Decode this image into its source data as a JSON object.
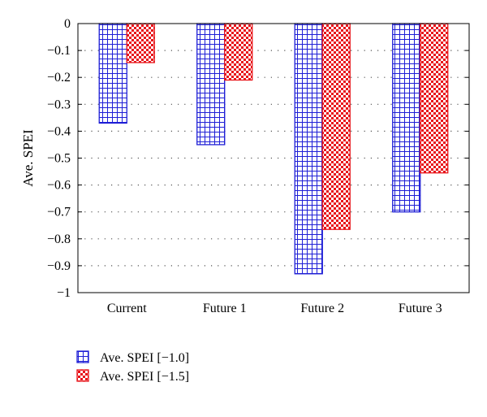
{
  "chart_data": {
    "type": "bar",
    "title": "",
    "xlabel": "",
    "ylabel": "Ave. SPEI",
    "categories": [
      "Current",
      "Future 1",
      "Future 2",
      "Future 3"
    ],
    "series": [
      {
        "name": "Ave. SPEI [−1.0]",
        "values": [
          -0.37,
          -0.45,
          -0.93,
          -0.7
        ],
        "color": "#1f1fd6",
        "pattern": "grid"
      },
      {
        "name": "Ave. SPEI [−1.5]",
        "values": [
          -0.145,
          -0.21,
          -0.765,
          -0.555
        ],
        "color": "#e8141a",
        "pattern": "checker"
      }
    ],
    "ylim": [
      -1,
      0
    ],
    "yticks": [
      0,
      -0.1,
      -0.2,
      -0.3,
      -0.4,
      -0.5,
      -0.6,
      -0.7,
      -0.8,
      -0.9,
      -1
    ],
    "ytick_labels": [
      "0",
      "−0.1",
      "−0.2",
      "−0.3",
      "−0.4",
      "−0.5",
      "−0.6",
      "−0.7",
      "−0.8",
      "−0.9",
      "−1"
    ],
    "grid": "dotted horizontal",
    "legend_position": "bottom-left"
  }
}
